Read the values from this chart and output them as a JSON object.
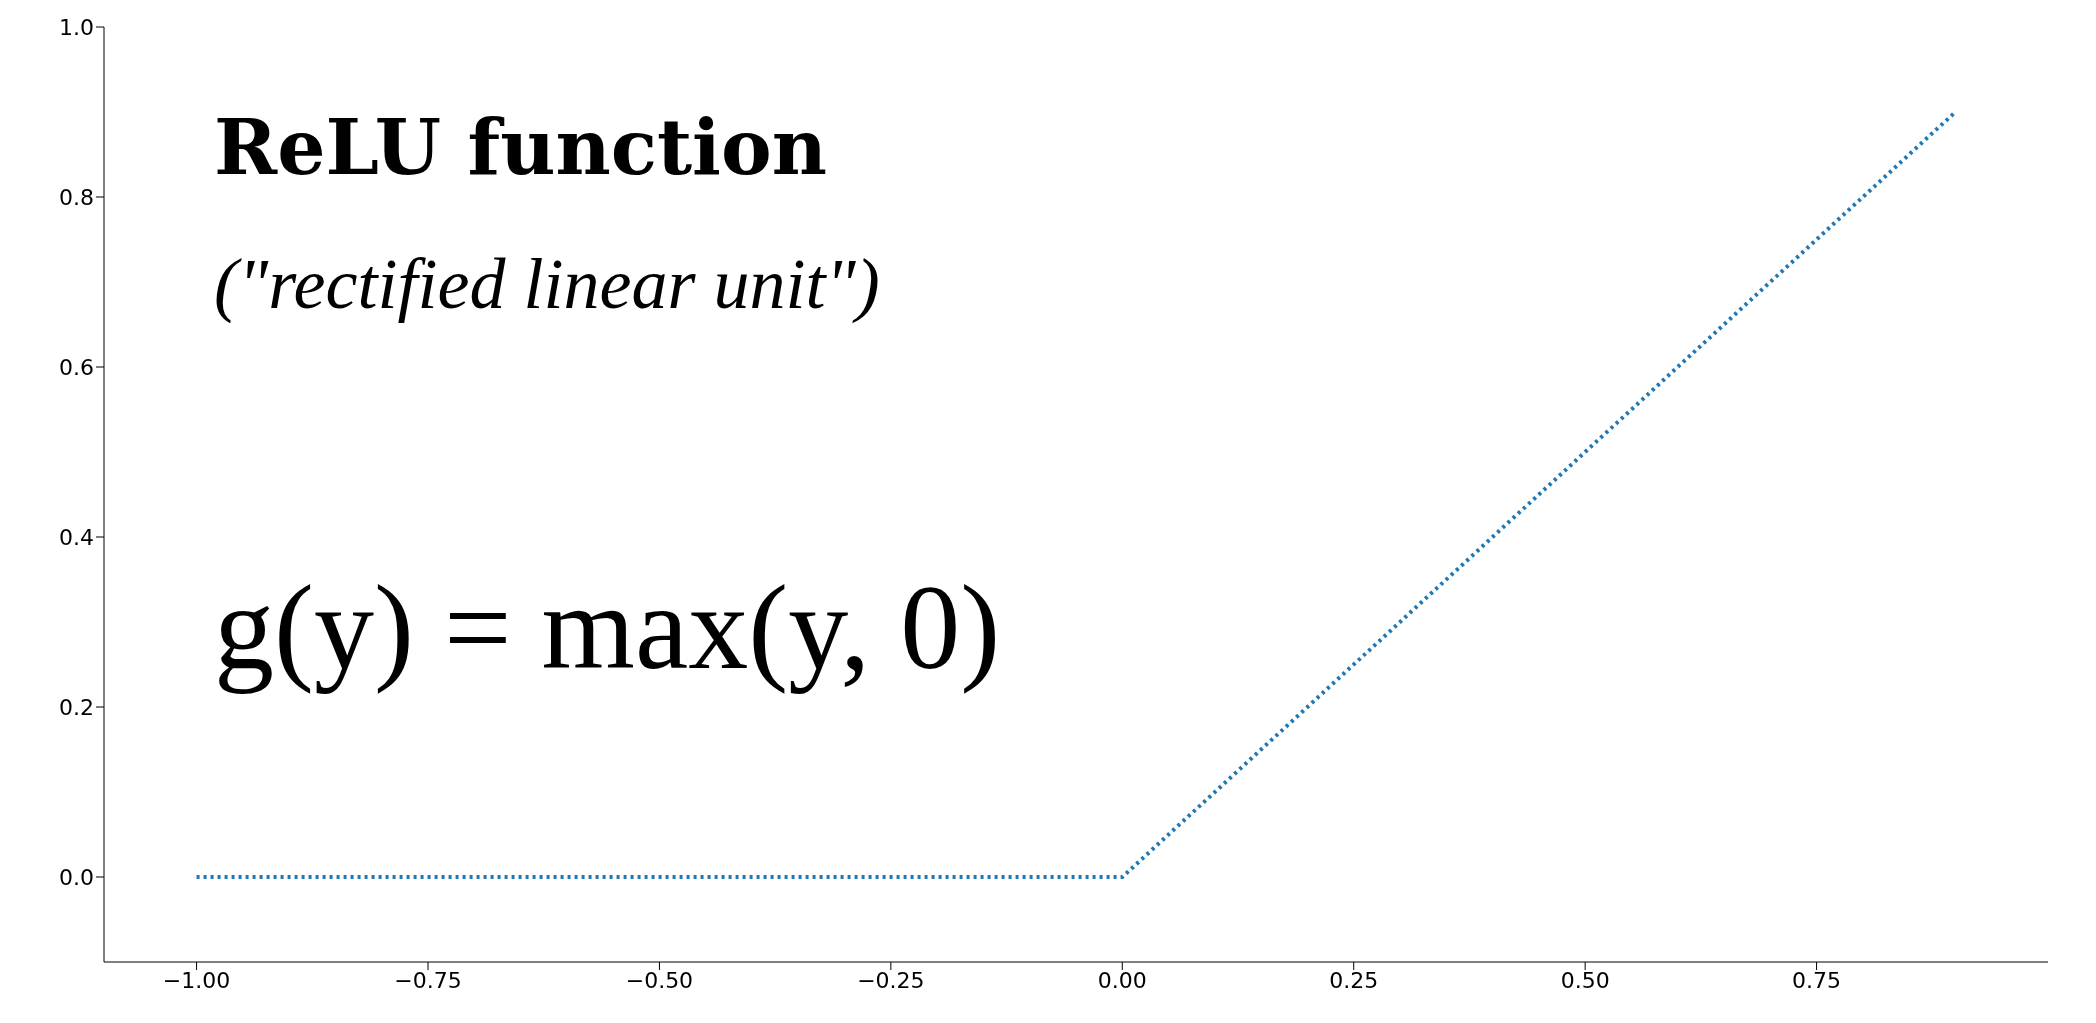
{
  "chart_data": {
    "type": "line",
    "title": "ReLU function",
    "subtitle": "(\"rectified linear unit\")",
    "annotations": [
      "g(y) = max(y, 0)"
    ],
    "x": [
      -1,
      0,
      0.9
    ],
    "series": [
      {
        "color": "#1f77b4",
        "values": [
          0,
          0,
          0.9
        ]
      }
    ],
    "line_style": "dotted",
    "marker": "none",
    "grid": false,
    "xlim": [
      -1.1,
      1.0
    ],
    "xticks": [
      {
        "value": -1,
        "label": "−1.00"
      },
      {
        "value": -0.75,
        "label": "−0.75"
      },
      {
        "value": -0.5,
        "label": "−0.50"
      },
      {
        "value": -0.25,
        "label": "−0.25"
      },
      {
        "value": 0,
        "label": "0.00"
      },
      {
        "value": 0.25,
        "label": "0.25"
      },
      {
        "value": 0.5,
        "label": "0.50"
      },
      {
        "value": 0.75,
        "label": "0.75"
      }
    ],
    "ylim": [
      -0.1,
      1.0
    ],
    "yticks": [
      {
        "value": 0,
        "label": "0.0"
      },
      {
        "value": 0.2,
        "label": "0.2"
      },
      {
        "value": 0.4,
        "label": "0.4"
      },
      {
        "value": 0.6,
        "label": "0.6"
      },
      {
        "value": 0.8,
        "label": "0.8"
      },
      {
        "value": 1,
        "label": "1.0"
      }
    ]
  }
}
